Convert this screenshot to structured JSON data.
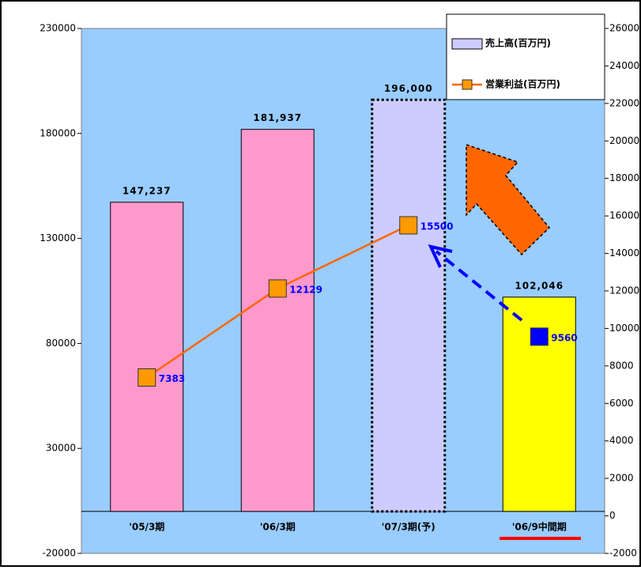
{
  "chart_data": {
    "type": "bar",
    "categories": [
      "'05/3期",
      "'06/3期",
      "'07/3期(予)",
      "'06/9中間期"
    ],
    "series": [
      {
        "name": "売上高(百万円)",
        "type": "bar",
        "color": "#ccccff",
        "colors": [
          "#ff99cc",
          "#ff99cc",
          "#ccccff",
          "#ffff00"
        ],
        "border_styles": [
          "solid",
          "solid",
          "dotted",
          "solid"
        ],
        "values": [
          147237,
          181937,
          196000,
          102046
        ],
        "value_labels": [
          "147,237",
          "181,937",
          "196,000",
          "102,046"
        ]
      },
      {
        "name": "営業利益(百万円)",
        "type": "line",
        "axis": "y2",
        "color": "#ff6600",
        "marker_color": "#ff9900",
        "label_color": "#0000ff",
        "values": [
          7383,
          12129,
          15500,
          null
        ]
      },
      {
        "type": "scatter",
        "axis": "y2",
        "color": "#0000ff",
        "marker_color": "#0000ff",
        "label_color": "#0000ff",
        "values": [
          null,
          null,
          null,
          9560
        ]
      }
    ],
    "ylim": [
      -20000,
      230000
    ],
    "yticks": [
      -20000,
      30000,
      80000,
      130000,
      180000,
      230000
    ],
    "y2lim": [
      -2000,
      26000
    ],
    "y2ticks": [
      -2000,
      0,
      2000,
      4000,
      6000,
      8000,
      10000,
      12000,
      14000,
      16000,
      18000,
      20000,
      22000,
      24000,
      26000
    ],
    "legend": "upper right"
  }
}
